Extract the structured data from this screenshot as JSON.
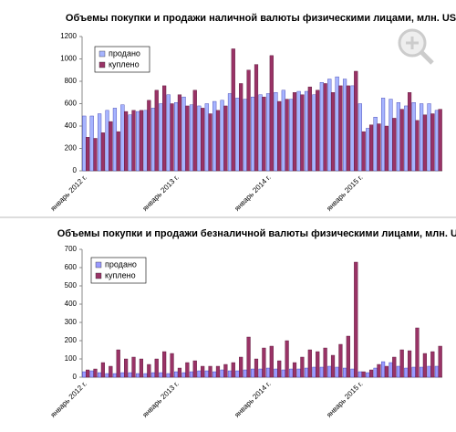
{
  "chart_data": [
    {
      "type": "bar",
      "title": "Объемы покупки и продажи наличной валюты физическими лицами, млн. USD",
      "categories": [
        "январь 2012 г.",
        null,
        null,
        null,
        null,
        null,
        null,
        null,
        null,
        null,
        null,
        null,
        "январь 2013 г.",
        null,
        null,
        null,
        null,
        null,
        null,
        null,
        null,
        null,
        null,
        null,
        "январь 2014 г.",
        null,
        null,
        null,
        null,
        null,
        null,
        null,
        null,
        null,
        null,
        null,
        "январь 2015 г.",
        null,
        null,
        null,
        null,
        null,
        null,
        null,
        null,
        null,
        null
      ],
      "series": [
        {
          "name": "продано",
          "color": "#a6b4ff",
          "values": [
            490,
            490,
            510,
            540,
            560,
            590,
            500,
            530,
            540,
            560,
            600,
            680,
            610,
            660,
            590,
            580,
            600,
            620,
            630,
            690,
            650,
            640,
            660,
            680,
            690,
            700,
            720,
            640,
            710,
            710,
            680,
            790,
            820,
            840,
            820,
            760,
            600,
            380,
            480,
            650,
            640,
            610,
            580,
            610,
            600,
            600,
            540
          ]
        },
        {
          "name": "куплено",
          "color": "#993366",
          "values": [
            300,
            290,
            340,
            440,
            350,
            530,
            540,
            540,
            630,
            720,
            760,
            600,
            680,
            580,
            720,
            560,
            510,
            540,
            580,
            1090,
            780,
            900,
            950,
            660,
            1030,
            620,
            640,
            700,
            680,
            750,
            720,
            780,
            700,
            760,
            760,
            890,
            350,
            410,
            420,
            400,
            470,
            550,
            700,
            450,
            500,
            510,
            550
          ]
        }
      ],
      "ylim": [
        0,
        1200
      ],
      "yticks": [
        0,
        200,
        400,
        600,
        800,
        1000,
        1200
      ],
      "grid": false,
      "legend": "upper left"
    },
    {
      "type": "bar",
      "title": "Объемы покупки и продажи безналичной валюты физическими лицами, млн. USD",
      "categories": [
        "январь 2012 г.",
        null,
        null,
        null,
        null,
        null,
        null,
        null,
        null,
        null,
        null,
        null,
        "январь 2013 г.",
        null,
        null,
        null,
        null,
        null,
        null,
        null,
        null,
        null,
        null,
        null,
        "январь 2014 г.",
        null,
        null,
        null,
        null,
        null,
        null,
        null,
        null,
        null,
        null,
        null,
        "январь 2015 г.",
        null,
        null,
        null,
        null,
        null,
        null,
        null,
        null,
        null,
        null
      ],
      "series": [
        {
          "name": "продано",
          "color": "#9999ff",
          "values": [
            30,
            35,
            25,
            20,
            20,
            25,
            25,
            20,
            20,
            25,
            25,
            20,
            30,
            25,
            30,
            35,
            35,
            30,
            40,
            35,
            35,
            40,
            45,
            45,
            50,
            45,
            40,
            45,
            45,
            50,
            55,
            55,
            60,
            55,
            50,
            45,
            30,
            25,
            50,
            85,
            80,
            60,
            50,
            55,
            55,
            60,
            60
          ]
        },
        {
          "name": "куплено",
          "color": "#993366",
          "values": [
            40,
            45,
            80,
            60,
            150,
            100,
            110,
            100,
            70,
            100,
            140,
            130,
            50,
            80,
            90,
            60,
            60,
            60,
            70,
            80,
            110,
            220,
            100,
            160,
            170,
            90,
            200,
            80,
            110,
            150,
            140,
            160,
            120,
            180,
            225,
            630,
            30,
            40,
            70,
            60,
            110,
            150,
            145,
            270,
            130,
            140,
            170
          ]
        }
      ],
      "ylim": [
        0,
        700
      ],
      "yticks": [
        0,
        100,
        200,
        300,
        400,
        500,
        600,
        700
      ],
      "grid": false,
      "legend": "upper left"
    }
  ]
}
